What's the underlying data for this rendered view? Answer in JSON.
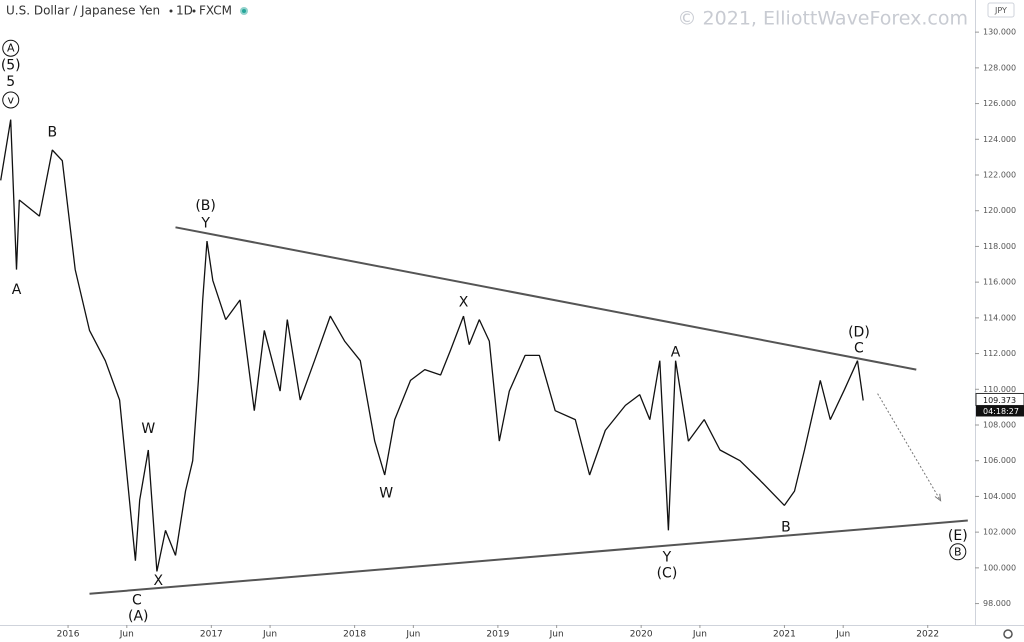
{
  "chart_data": {
    "type": "line",
    "title_parts": [
      "U.S. Dollar / Japanese Yen",
      "1D",
      "FXCM"
    ],
    "watermark": "© 2021, ElliottWaveForex.com",
    "currency": "JPY",
    "last_price": 109.373,
    "countdown": "04:18:27",
    "xlim": [
      2015.525,
      2022.33
    ],
    "ylim": [
      96.8,
      131.8
    ],
    "xticks": [
      2016,
      {
        "value": 2016.41,
        "label": "Jun"
      },
      2017,
      {
        "value": 2017.41,
        "label": "Jun"
      },
      2018,
      {
        "value": 2018.41,
        "label": "Jun"
      },
      2019,
      {
        "value": 2019.41,
        "label": "Jun"
      },
      2020,
      {
        "value": 2020.41,
        "label": "Jun"
      },
      2021,
      {
        "value": 2021.41,
        "label": "Jun"
      },
      2022
    ],
    "yticks": [
      {
        "value": 98,
        "label": "98.000"
      },
      {
        "value": 100,
        "label": "100.000"
      },
      {
        "value": 102,
        "label": "102.000"
      },
      {
        "value": 104,
        "label": "104.000"
      },
      {
        "value": 106,
        "label": "106.000"
      },
      {
        "value": 108,
        "label": "108.000"
      },
      {
        "value": 110,
        "label": "110.000"
      },
      {
        "value": 112,
        "label": "112.000"
      },
      {
        "value": 114,
        "label": "114.000"
      },
      {
        "value": 116,
        "label": "116.000"
      },
      {
        "value": 118,
        "label": "118.000"
      },
      {
        "value": 120,
        "label": "120.000"
      },
      {
        "value": 122,
        "label": "122.000"
      },
      {
        "value": 124,
        "label": "124.000"
      },
      {
        "value": 126,
        "label": "126.000"
      },
      {
        "value": 128,
        "label": "128.000"
      },
      {
        "value": 130,
        "label": "130.000"
      }
    ],
    "series": [
      {
        "color": "#111111",
        "x": [
          2015.53,
          2015.6,
          2015.64,
          2015.66,
          2015.8,
          2015.89,
          2015.96,
          2016.05,
          2016.15,
          2016.26,
          2016.36,
          2016.47,
          2016.5,
          2016.56,
          2016.62,
          2016.68,
          2016.75,
          2016.82,
          2016.87,
          2016.91,
          2016.94,
          2016.97,
          2017.01,
          2017.1,
          2017.2,
          2017.3,
          2017.37,
          2017.48,
          2017.53,
          2017.62,
          2017.72,
          2017.83,
          2017.93,
          2018.04,
          2018.14,
          2018.21,
          2018.28,
          2018.39,
          2018.49,
          2018.6,
          2018.67,
          2018.76,
          2018.8,
          2018.87,
          2018.94,
          2019.01,
          2019.08,
          2019.19,
          2019.29,
          2019.4,
          2019.54,
          2019.64,
          2019.75,
          2019.89,
          2019.99,
          2020.06,
          2020.13,
          2020.19,
          2020.24,
          2020.33,
          2020.44,
          2020.55,
          2020.69,
          2020.83,
          2021.0,
          2021.07,
          2021.14,
          2021.25,
          2021.32,
          2021.42,
          2021.51,
          2021.55
        ],
        "values": [
          121.7,
          125.1,
          116.7,
          120.6,
          119.7,
          123.4,
          122.8,
          116.7,
          113.3,
          111.6,
          109.4,
          100.4,
          103.8,
          106.6,
          99.8,
          102.1,
          100.7,
          104.3,
          106.0,
          110.5,
          115.0,
          118.3,
          116.1,
          113.9,
          115.0,
          108.8,
          113.3,
          109.9,
          113.9,
          109.4,
          111.6,
          114.1,
          112.7,
          111.6,
          107.1,
          105.2,
          108.3,
          110.5,
          111.1,
          110.8,
          112.2,
          114.1,
          112.5,
          113.9,
          112.7,
          107.1,
          109.9,
          111.9,
          111.9,
          108.8,
          108.3,
          105.2,
          107.7,
          109.1,
          109.7,
          108.3,
          111.6,
          102.1,
          111.6,
          107.1,
          108.3,
          106.6,
          106.0,
          104.9,
          103.5,
          104.3,
          106.6,
          110.5,
          108.3,
          110.0,
          111.6,
          109.373
        ]
      }
    ],
    "trendlines": [
      {
        "color": "#555555",
        "x": [
          2016.75,
          2021.92
        ],
        "values": [
          119.07,
          111.1
        ]
      },
      {
        "color": "#555555",
        "x": [
          2016.15,
          2022.28
        ],
        "values": [
          98.55,
          102.65
        ]
      }
    ],
    "projection": {
      "color": "#777777",
      "x": [
        2021.65,
        2022.09
      ],
      "values": [
        109.76,
        103.76
      ]
    },
    "annotations": [
      {
        "text": "A",
        "x": 2015.6,
        "y": 129.1,
        "circled": true
      },
      {
        "text": "(5)",
        "x": 2015.6,
        "y": 128.15
      },
      {
        "text": "5",
        "x": 2015.6,
        "y": 127.25
      },
      {
        "text": "v",
        "x": 2015.6,
        "y": 126.2,
        "circled": true
      },
      {
        "text": "A",
        "x": 2015.64,
        "y": 115.6
      },
      {
        "text": "B",
        "x": 2015.89,
        "y": 124.4
      },
      {
        "text": "W",
        "x": 2016.56,
        "y": 107.8
      },
      {
        "text": "X",
        "x": 2016.63,
        "y": 99.3
      },
      {
        "text": "C",
        "x": 2016.48,
        "y": 98.2
      },
      {
        "text": "(A)",
        "x": 2016.49,
        "y": 97.3
      },
      {
        "text": "(B)",
        "x": 2016.96,
        "y": 120.3
      },
      {
        "text": "Y",
        "x": 2016.96,
        "y": 119.3
      },
      {
        "text": "W",
        "x": 2018.22,
        "y": 104.2
      },
      {
        "text": "X",
        "x": 2018.76,
        "y": 114.9
      },
      {
        "text": "A",
        "x": 2020.24,
        "y": 112.1
      },
      {
        "text": "Y",
        "x": 2020.18,
        "y": 100.6
      },
      {
        "text": "(C)",
        "x": 2020.18,
        "y": 99.7
      },
      {
        "text": "B",
        "x": 2021.01,
        "y": 102.3
      },
      {
        "text": "(D)",
        "x": 2021.52,
        "y": 113.2
      },
      {
        "text": "C",
        "x": 2021.52,
        "y": 112.3
      },
      {
        "text": "(E)",
        "x": 2022.21,
        "y": 101.8
      },
      {
        "text": "B",
        "x": 2022.21,
        "y": 100.9,
        "circled": true
      }
    ]
  }
}
